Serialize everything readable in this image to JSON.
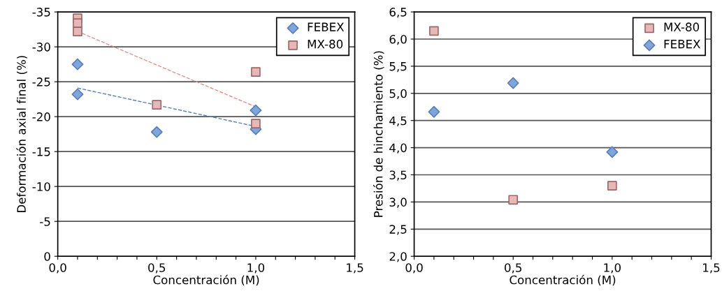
{
  "chart_data": [
    {
      "type": "scatter",
      "xlabel": "Concentración (M)",
      "ylabel": "Deformación axial final (%)",
      "xlim": [
        0,
        1.5
      ],
      "ylim": [
        0,
        -35
      ],
      "xticks": [
        {
          "value": 0,
          "label": "0,0"
        },
        {
          "value": 0.1,
          "label": null
        },
        {
          "value": 0.2,
          "label": null
        },
        {
          "value": 0.3,
          "label": null
        },
        {
          "value": 0.4,
          "label": null
        },
        {
          "value": 0.5,
          "label": "0,5"
        },
        {
          "value": 0.6,
          "label": null
        },
        {
          "value": 0.7,
          "label": null
        },
        {
          "value": 0.8,
          "label": null
        },
        {
          "value": 0.9,
          "label": null
        },
        {
          "value": 1.0,
          "label": "1,0"
        },
        {
          "value": 1.1,
          "label": null
        },
        {
          "value": 1.2,
          "label": null
        },
        {
          "value": 1.3,
          "label": null
        },
        {
          "value": 1.4,
          "label": null
        },
        {
          "value": 1.5,
          "label": "1,5"
        }
      ],
      "yticks": [
        0,
        -5,
        -10,
        -15,
        -20,
        -25,
        -30,
        -35
      ],
      "grid": "y",
      "legend": "top right",
      "series": [
        {
          "name": "FEBEX",
          "color": "#7ea6dc",
          "marker": "diamond",
          "x": [
            0.1,
            0.1,
            0.5,
            1.0,
            1.0
          ],
          "values": [
            -27.5,
            -23.2,
            -17.8,
            -20.9,
            -18.2
          ]
        },
        {
          "name": "MX-80",
          "color": "#e6b9b8",
          "marker": "square",
          "x": [
            0.1,
            0.1,
            0.1,
            0.5,
            1.0,
            1.0
          ],
          "values": [
            -34.1,
            -33.4,
            -32.2,
            -21.7,
            -26.4,
            -19.0
          ]
        },
        {
          "type": "line",
          "color": "#4f81bd",
          "line_style": "dashed",
          "marker": "none",
          "x": [
            0.1,
            1.0
          ],
          "values": [
            -24.1,
            -18.6
          ]
        },
        {
          "type": "line",
          "color": "#e6908e",
          "line_style": "dashed",
          "marker": "none",
          "x": [
            0.1,
            1.0
          ],
          "values": [
            -32.2,
            -21.4
          ]
        }
      ]
    },
    {
      "type": "scatter",
      "xlabel": "Concentración (M)",
      "ylabel": "Presión de hinchamiento (%)",
      "xlim": [
        0,
        1.5
      ],
      "ylim": [
        2.0,
        6.5
      ],
      "xticks": [
        {
          "value": 0,
          "label": "0,0"
        },
        {
          "value": 0.1,
          "label": null
        },
        {
          "value": 0.2,
          "label": null
        },
        {
          "value": 0.3,
          "label": null
        },
        {
          "value": 0.4,
          "label": null
        },
        {
          "value": 0.5,
          "label": "0,5"
        },
        {
          "value": 0.6,
          "label": null
        },
        {
          "value": 0.7,
          "label": null
        },
        {
          "value": 0.8,
          "label": null
        },
        {
          "value": 0.9,
          "label": null
        },
        {
          "value": 1.0,
          "label": "1,0"
        },
        {
          "value": 1.1,
          "label": null
        },
        {
          "value": 1.2,
          "label": null
        },
        {
          "value": 1.3,
          "label": null
        },
        {
          "value": 1.4,
          "label": null
        },
        {
          "value": 1.5,
          "label": "1,5"
        }
      ],
      "yticks": [
        {
          "value": 2.0,
          "label": "2,0"
        },
        {
          "value": 2.5,
          "label": "2,5"
        },
        {
          "value": 3.0,
          "label": "3,0"
        },
        {
          "value": 3.5,
          "label": "3,5"
        },
        {
          "value": 4.0,
          "label": "4,0"
        },
        {
          "value": 4.5,
          "label": "4,5"
        },
        {
          "value": 5.0,
          "label": "5,0"
        },
        {
          "value": 5.5,
          "label": "5,5"
        },
        {
          "value": 6.0,
          "label": "6,0"
        },
        {
          "value": 6.5,
          "label": "6,5"
        }
      ],
      "grid": "y",
      "legend": "top right",
      "series": [
        {
          "name": "MX-80",
          "color": "#e6b9b8",
          "marker": "square",
          "x": [
            0.1,
            0.5,
            1.0
          ],
          "values": [
            6.15,
            3.04,
            3.3
          ]
        },
        {
          "name": "FEBEX",
          "color": "#7ea6dc",
          "marker": "diamond",
          "x": [
            0.1,
            0.5,
            1.0
          ],
          "values": [
            4.66,
            5.19,
            3.92
          ]
        }
      ]
    }
  ]
}
